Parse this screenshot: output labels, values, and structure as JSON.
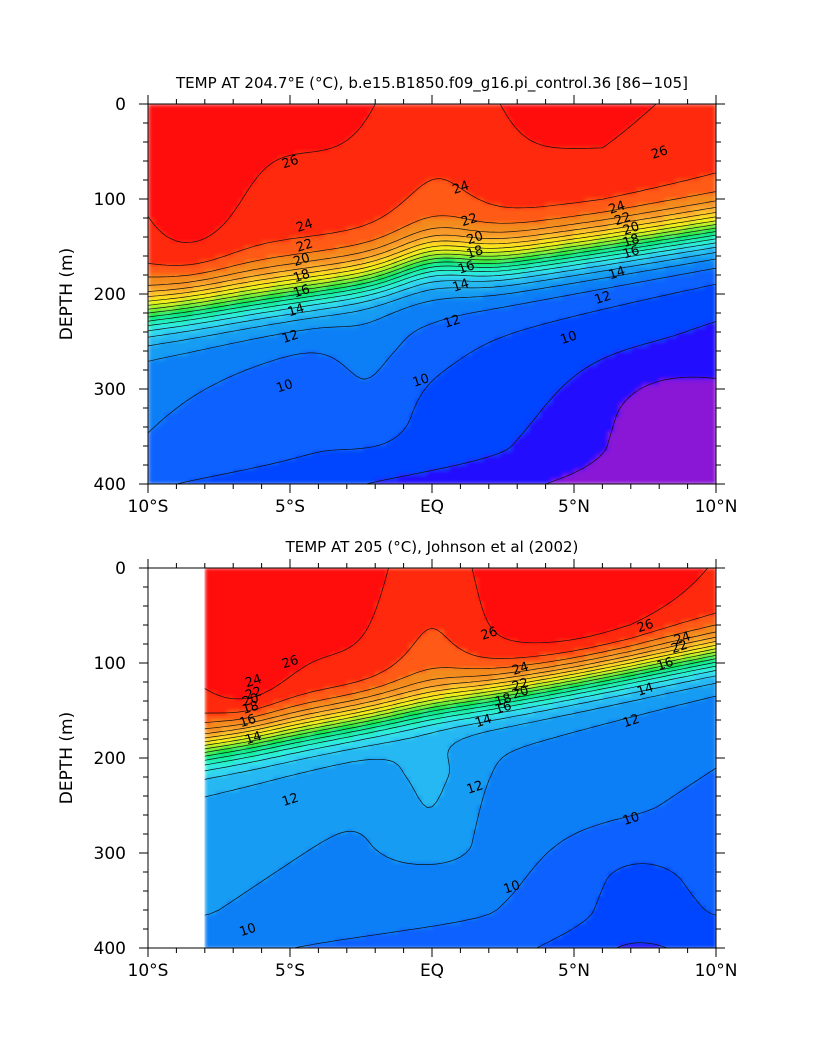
{
  "chart_data": [
    {
      "type": "heatmap",
      "subtype": "filled-contour depth section",
      "title": "TEMP AT 204.7°E (°C), b.e15.B1850.f09_g16.pi_control.36 [86−105]",
      "xlabel": "",
      "ylabel": "DEPTH (m)",
      "x_ticks": [
        {
          "value": -10,
          "label": "10°S"
        },
        {
          "value": -5,
          "label": "5°S"
        },
        {
          "value": 0,
          "label": "EQ"
        },
        {
          "value": 5,
          "label": "5°N"
        },
        {
          "value": 10,
          "label": "10°N"
        }
      ],
      "y_ticks": [
        {
          "value": 0,
          "label": "0"
        },
        {
          "value": 100,
          "label": "100"
        },
        {
          "value": 200,
          "label": "200"
        },
        {
          "value": 300,
          "label": "300"
        },
        {
          "value": 400,
          "label": "400"
        }
      ],
      "xlim": [
        -10,
        10
      ],
      "ylim": [
        0,
        400
      ],
      "data_xlim": [
        -10,
        10
      ],
      "levels": [
        7,
        8,
        9,
        10,
        11,
        12,
        13,
        14,
        15,
        16,
        17,
        18,
        19,
        20,
        21,
        22,
        23,
        24,
        25,
        26,
        27
      ],
      "contour_labels": [
        {
          "x": -5.0,
          "y": 60,
          "text": "26"
        },
        {
          "x": 8.0,
          "y": 50,
          "text": "26"
        },
        {
          "x": 1.0,
          "y": 87,
          "text": "24"
        },
        {
          "x": 6.5,
          "y": 108,
          "text": "24"
        },
        {
          "x": -4.5,
          "y": 127,
          "text": "24"
        },
        {
          "x": 1.3,
          "y": 121,
          "text": "22"
        },
        {
          "x": 6.7,
          "y": 120,
          "text": "22"
        },
        {
          "x": -4.5,
          "y": 148,
          "text": "22"
        },
        {
          "x": 1.5,
          "y": 140,
          "text": "20"
        },
        {
          "x": 7.0,
          "y": 130,
          "text": "20"
        },
        {
          "x": -4.6,
          "y": 163,
          "text": "20"
        },
        {
          "x": 1.5,
          "y": 155,
          "text": "18"
        },
        {
          "x": 7.0,
          "y": 143,
          "text": "18"
        },
        {
          "x": -4.6,
          "y": 180,
          "text": "18"
        },
        {
          "x": 1.2,
          "y": 171,
          "text": "16"
        },
        {
          "x": 7.0,
          "y": 155,
          "text": "16"
        },
        {
          "x": -4.6,
          "y": 196,
          "text": "16"
        },
        {
          "x": 1.0,
          "y": 190,
          "text": "14"
        },
        {
          "x": 6.5,
          "y": 177,
          "text": "14"
        },
        {
          "x": -4.8,
          "y": 216,
          "text": "14"
        },
        {
          "x": 6.0,
          "y": 203,
          "text": "12"
        },
        {
          "x": 0.7,
          "y": 228,
          "text": "12"
        },
        {
          "x": -5.0,
          "y": 244,
          "text": "12"
        },
        {
          "x": 4.8,
          "y": 245,
          "text": "10"
        },
        {
          "x": -5.2,
          "y": 296,
          "text": "10"
        },
        {
          "x": -0.4,
          "y": 290,
          "text": "10"
        }
      ]
    },
    {
      "type": "heatmap",
      "subtype": "filled-contour depth section",
      "title": "TEMP AT 205 (°C), Johnson et al (2002)",
      "xlabel": "",
      "ylabel": "DEPTH (m)",
      "x_ticks": [
        {
          "value": -10,
          "label": "10°S"
        },
        {
          "value": -5,
          "label": "5°S"
        },
        {
          "value": 0,
          "label": "EQ"
        },
        {
          "value": 5,
          "label": "5°N"
        },
        {
          "value": 10,
          "label": "10°N"
        }
      ],
      "y_ticks": [
        {
          "value": 0,
          "label": "0"
        },
        {
          "value": 100,
          "label": "100"
        },
        {
          "value": 200,
          "label": "200"
        },
        {
          "value": 300,
          "label": "300"
        },
        {
          "value": 400,
          "label": "400"
        }
      ],
      "xlim": [
        -10,
        10
      ],
      "ylim": [
        0,
        400
      ],
      "data_xlim": [
        -8,
        10
      ],
      "levels": [
        7,
        8,
        9,
        10,
        11,
        12,
        13,
        14,
        15,
        16,
        17,
        18,
        19,
        20,
        21,
        22,
        23,
        24,
        25,
        26,
        27
      ],
      "contour_labels": [
        {
          "x": 2.0,
          "y": 68,
          "text": "26"
        },
        {
          "x": 7.5,
          "y": 60,
          "text": "26"
        },
        {
          "x": -5.0,
          "y": 98,
          "text": "26"
        },
        {
          "x": 3.1,
          "y": 105,
          "text": "24"
        },
        {
          "x": 8.8,
          "y": 73,
          "text": "24"
        },
        {
          "x": -6.3,
          "y": 118,
          "text": "24"
        },
        {
          "x": 3.1,
          "y": 122,
          "text": "22"
        },
        {
          "x": 8.7,
          "y": 82,
          "text": "22"
        },
        {
          "x": -6.3,
          "y": 131,
          "text": "22"
        },
        {
          "x": 3.1,
          "y": 130,
          "text": "20"
        },
        {
          "x": -6.4,
          "y": 138,
          "text": "20"
        },
        {
          "x": 2.5,
          "y": 138,
          "text": "18"
        },
        {
          "x": -6.4,
          "y": 146,
          "text": "18"
        },
        {
          "x": 2.5,
          "y": 146,
          "text": "16"
        },
        {
          "x": 8.2,
          "y": 100,
          "text": "16"
        },
        {
          "x": -6.5,
          "y": 160,
          "text": "16"
        },
        {
          "x": 1.8,
          "y": 160,
          "text": "14"
        },
        {
          "x": 7.5,
          "y": 127,
          "text": "14"
        },
        {
          "x": -6.3,
          "y": 178,
          "text": "14"
        },
        {
          "x": 7.0,
          "y": 160,
          "text": "12"
        },
        {
          "x": 1.5,
          "y": 230,
          "text": "12"
        },
        {
          "x": -5.0,
          "y": 243,
          "text": "12"
        },
        {
          "x": 7.0,
          "y": 263,
          "text": "10"
        },
        {
          "x": 2.8,
          "y": 335,
          "text": "10"
        },
        {
          "x": -6.5,
          "y": 380,
          "text": "10"
        }
      ]
    }
  ],
  "palette": [
    "#8a16d6",
    "#2010ff",
    "#0044ff",
    "#0a62ff",
    "#0b7ff6",
    "#159cf2",
    "#27b8f2",
    "#33d6f0",
    "#2ef0dc",
    "#1cf0b0",
    "#10e888",
    "#00e640",
    "#5cf03a",
    "#b0f028",
    "#f6f218",
    "#ffd822",
    "#ffb82e",
    "#f89a2a",
    "#f38a1f",
    "#ff5a18",
    "#ff2a10",
    "#ff0a0a"
  ]
}
